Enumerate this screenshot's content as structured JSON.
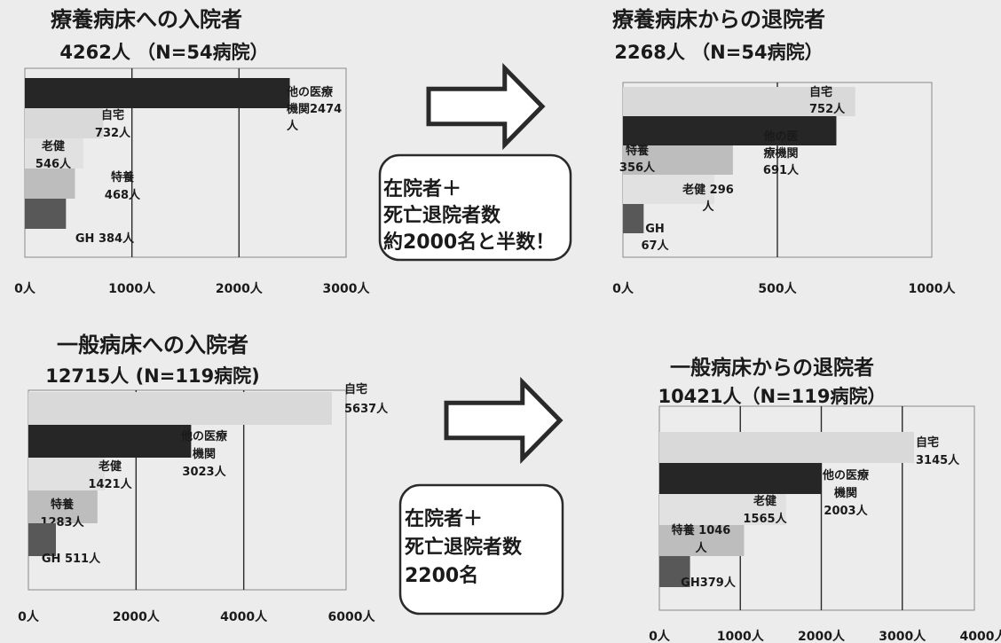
{
  "chart_data": [
    {
      "type": "bar",
      "title": "療養病床への入院者",
      "subtitle": "4262人 （N=54病院）",
      "xlim": [
        0,
        3000
      ],
      "x_ticks": [
        "0人",
        "1000人",
        "2000人",
        "3000人"
      ],
      "bars": [
        {
          "name": "他の医療機関",
          "value": 2474,
          "label": [
            "他の医療",
            "機関2474",
            "人"
          ],
          "color": "#262626"
        },
        {
          "name": "自宅",
          "value": 732,
          "label": [
            "自宅",
            "732人"
          ],
          "color": "#d9d9d9"
        },
        {
          "name": "老健",
          "value": 546,
          "label": [
            "老健",
            "546人"
          ],
          "color": "#e1e1e1"
        },
        {
          "name": "特養",
          "value": 468,
          "label": [
            "特養",
            "468人"
          ],
          "color": "#bdbdbd"
        },
        {
          "name": "GH",
          "value": 384,
          "label": [
            "GH 384人"
          ],
          "color": "#585858"
        }
      ]
    },
    {
      "type": "bar",
      "title": "療養病床からの退院者",
      "subtitle": "2268人 （N=54病院）",
      "xlim": [
        0,
        1000
      ],
      "x_ticks": [
        "0人",
        "500人",
        "1000人"
      ],
      "bars": [
        {
          "name": "自宅",
          "value": 752,
          "label": [
            "自宅",
            "752人"
          ],
          "color": "#d9d9d9"
        },
        {
          "name": "他の医療機関",
          "value": 691,
          "label": [
            "他の医",
            "療機関",
            "691人"
          ],
          "color": "#262626"
        },
        {
          "name": "特養",
          "value": 356,
          "label": [
            "特養",
            "356人"
          ],
          "color": "#bdbdbd"
        },
        {
          "name": "老健",
          "value": 296,
          "label": [
            "老健 296",
            "人"
          ],
          "color": "#e1e1e1"
        },
        {
          "name": "GH",
          "value": 67,
          "label": [
            "GH",
            "67人"
          ],
          "color": "#585858"
        }
      ]
    },
    {
      "type": "bar",
      "title": "一般病床への入院者",
      "subtitle": "12715人 (N=119病院)",
      "xlim": [
        0,
        6000
      ],
      "x_ticks": [
        "0人",
        "2000人",
        "4000人",
        "6000人"
      ],
      "bars": [
        {
          "name": "自宅",
          "value": 5637,
          "label": [
            "自宅",
            "5637人"
          ],
          "color": "#d9d9d9"
        },
        {
          "name": "他の医療機関",
          "value": 3023,
          "label": [
            "他の医療",
            "機関",
            "3023人"
          ],
          "color": "#262626"
        },
        {
          "name": "老健",
          "value": 1421,
          "label": [
            "老健",
            "1421人"
          ],
          "color": "#e1e1e1"
        },
        {
          "name": "特養",
          "value": 1283,
          "label": [
            "特養",
            "1283人"
          ],
          "color": "#bdbdbd"
        },
        {
          "name": "GH",
          "value": 511,
          "label": [
            "GH 511人"
          ],
          "color": "#585858"
        }
      ]
    },
    {
      "type": "bar",
      "title": "一般病床からの退院者",
      "subtitle": "10421人（N=119病院）",
      "xlim": [
        0,
        4000
      ],
      "x_ticks": [
        "0人",
        "1000人",
        "2000人",
        "3000人",
        "4000人"
      ],
      "bars": [
        {
          "name": "自宅",
          "value": 3145,
          "label": [
            "自宅",
            "3145人"
          ],
          "color": "#d9d9d9"
        },
        {
          "name": "他の医療機関",
          "value": 2003,
          "label": [
            "他の医療",
            "機関",
            "2003人"
          ],
          "color": "#262626"
        },
        {
          "name": "老健",
          "value": 1565,
          "label": [
            "老健",
            "1565人"
          ],
          "color": "#e1e1e1"
        },
        {
          "name": "特養",
          "value": 1046,
          "label": [
            "特養 1046",
            "人"
          ],
          "color": "#bdbdbd"
        },
        {
          "name": "GH",
          "value": 379,
          "label": [
            "GH379人"
          ],
          "color": "#585858"
        }
      ]
    }
  ],
  "notes": [
    {
      "lines": [
        "在院者＋",
        "死亡退院者数",
        "約2000名と半数！"
      ]
    },
    {
      "lines": [
        "在院者＋",
        "死亡退院者数",
        "2200名"
      ]
    }
  ]
}
